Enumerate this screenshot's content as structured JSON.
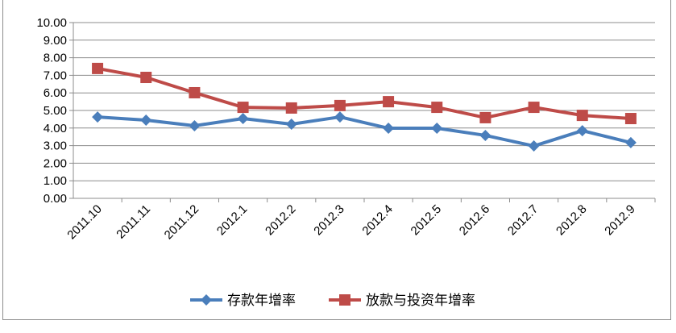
{
  "chart_data": {
    "type": "line",
    "title": "",
    "xlabel": "",
    "ylabel": "",
    "ylim": [
      0,
      10
    ],
    "yticks": [
      "0.00",
      "1.00",
      "2.00",
      "3.00",
      "4.00",
      "5.00",
      "6.00",
      "7.00",
      "8.00",
      "9.00",
      "10.00"
    ],
    "grid": true,
    "legend_position": "bottom",
    "categories": [
      "2011.10",
      "2011.11",
      "2011.12",
      "2012.1",
      "2012.2",
      "2012.3",
      "2012.4",
      "2012.5",
      "2012.6",
      "2012.7",
      "2012.8",
      "2012.9"
    ],
    "series": [
      {
        "name": "存款年增率",
        "color": "#4a7ebb",
        "marker": "diamond",
        "values": [
          4.63,
          4.45,
          4.13,
          4.54,
          4.22,
          4.63,
          3.99,
          3.99,
          3.58,
          2.98,
          3.85,
          3.17
        ]
      },
      {
        "name": "放款与投资年增率",
        "color": "#be4b48",
        "marker": "square",
        "values": [
          7.39,
          6.88,
          6.01,
          5.18,
          5.14,
          5.28,
          5.5,
          5.18,
          4.59,
          5.18,
          4.72,
          4.54
        ]
      }
    ]
  }
}
